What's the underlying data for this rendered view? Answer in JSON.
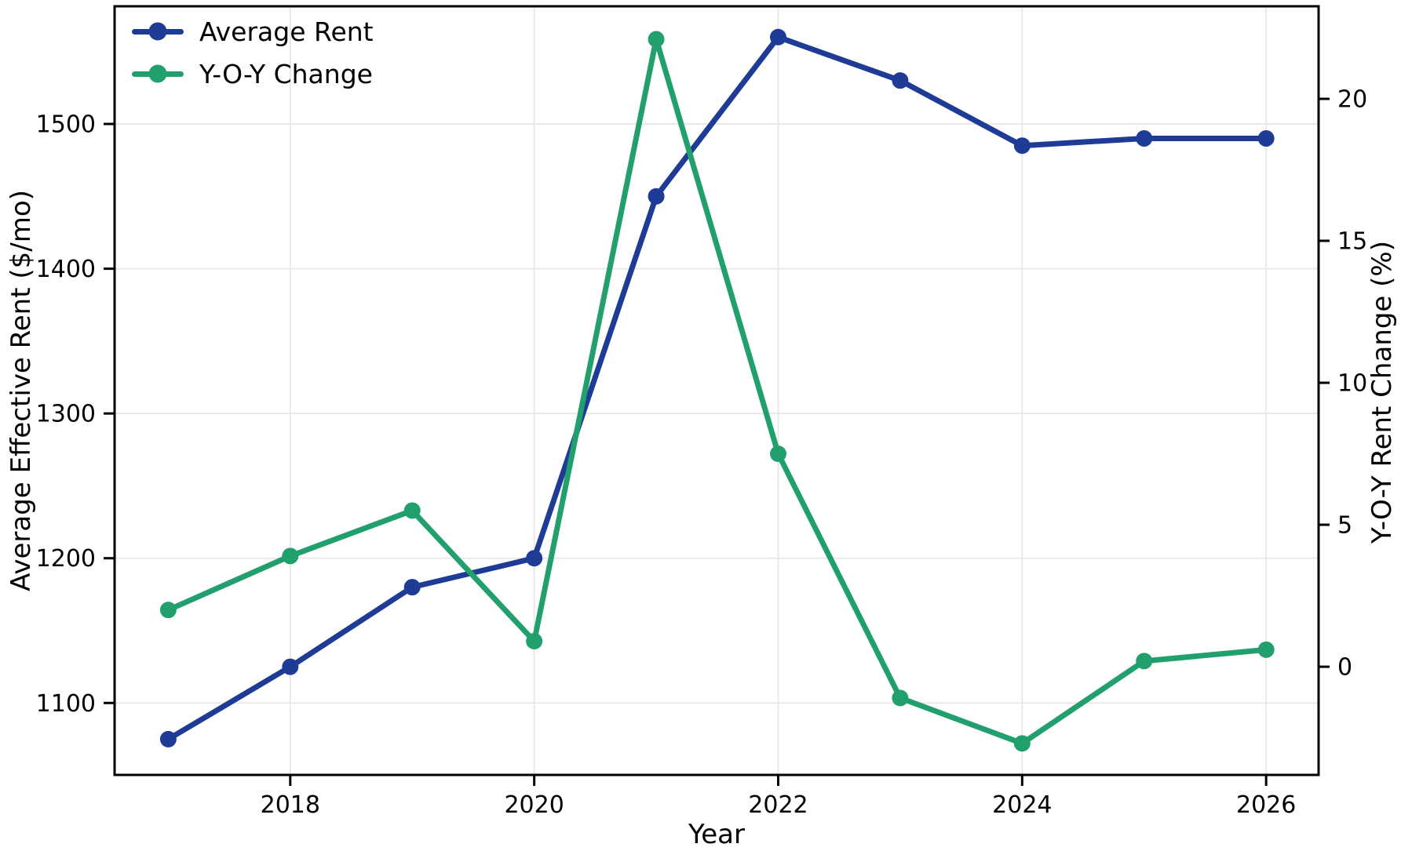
{
  "chart_data": {
    "type": "line",
    "x": [
      2017,
      2018,
      2019,
      2020,
      2021,
      2022,
      2023,
      2024,
      2025,
      2026
    ],
    "x_ticks": [
      2018,
      2020,
      2022,
      2024,
      2026
    ],
    "xlabel": "Year",
    "xlim": [
      2016.56,
      2026.43
    ],
    "left_axis": {
      "label": "Average Effective Rent ($/mo)",
      "ticks": [
        1100,
        1200,
        1300,
        1400,
        1500
      ],
      "lim": [
        1050.3,
        1581.3
      ]
    },
    "right_axis": {
      "label": "Y-O-Y Rent Change (%)",
      "ticks": [
        0,
        5,
        10,
        15,
        20
      ],
      "lim": [
        -3.81,
        23.26
      ]
    },
    "series": [
      {
        "name": "Average Rent",
        "axis": "left",
        "color": "#1E3C96",
        "values": [
          1075,
          1125,
          1180,
          1200,
          1450,
          1560,
          1530,
          1485,
          1490,
          1490
        ]
      },
      {
        "name": "Y-O-Y Change",
        "axis": "right",
        "color": "#21A06E",
        "values": [
          2.0,
          3.9,
          5.5,
          0.9,
          22.1,
          7.5,
          -1.1,
          -2.7,
          0.2,
          0.6
        ]
      }
    ],
    "grid": true,
    "grid_color": "#e7e7e7",
    "background": "#ffffff",
    "legend_position": "upper-left"
  }
}
